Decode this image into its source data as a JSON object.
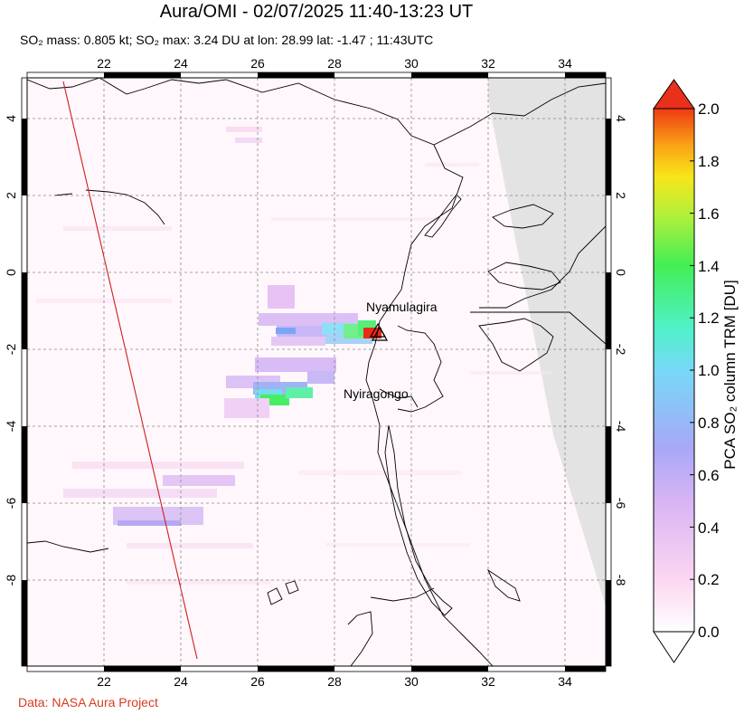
{
  "header": {
    "title": "Aura/OMI - 02/07/2025 11:40-13:23 UT",
    "subtitle": "SO₂ mass: 0.805 kt; SO₂ max: 3.24 DU at lon: 28.99 lat: -1.47 ; 11:43UTC"
  },
  "map": {
    "lon_ticks": [
      "22",
      "24",
      "26",
      "28",
      "30",
      "32",
      "34"
    ],
    "lat_ticks": [
      "4",
      "2",
      "0",
      "-2",
      "-4",
      "-6",
      "-8"
    ],
    "volcanoes": [
      {
        "name": "Nyamulagira",
        "lon": 29.2,
        "lat": -1.41
      },
      {
        "name": "Nyiragongo",
        "lon": 29.25,
        "lat": -1.52
      }
    ],
    "max_point": {
      "lon": 28.99,
      "lat": -1.47,
      "value_du": 3.24
    }
  },
  "colorbar": {
    "label": "PCA SO₂ column TRM [DU]",
    "tick_labels": [
      "2.0",
      "1.8",
      "1.6",
      "1.4",
      "1.2",
      "1.0",
      "0.8",
      "0.6",
      "0.4",
      "0.2",
      "0.0"
    ],
    "colors": [
      "#ffffff",
      "#fbd6f0",
      "#d8b4f5",
      "#a8a8f6",
      "#77d8f8",
      "#4ff2c8",
      "#43ee55",
      "#b5f03a",
      "#f7e619",
      "#f9a316",
      "#ef3a12",
      "#d6110f"
    ]
  },
  "credit": "Data: NASA Aura Project"
}
